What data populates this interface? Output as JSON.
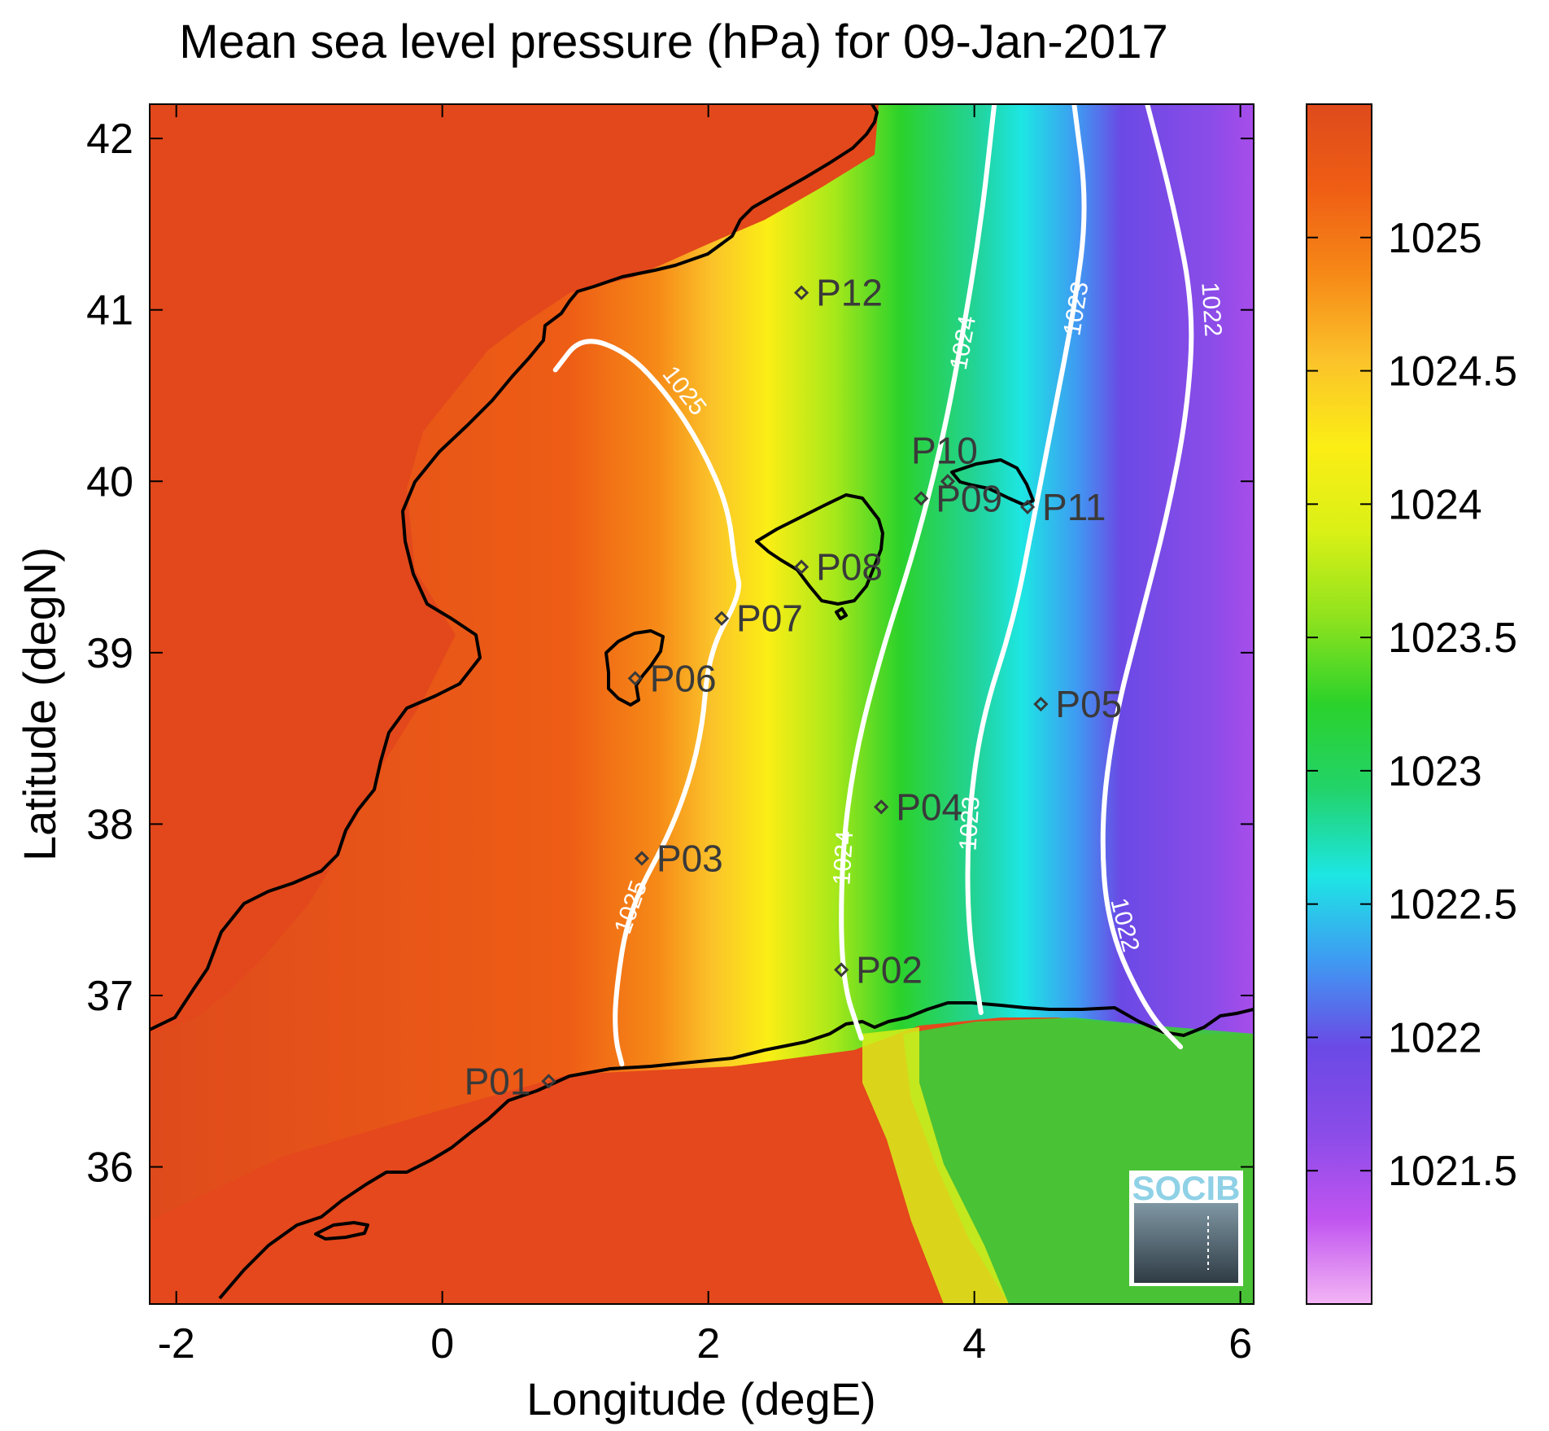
{
  "title": "Mean sea level pressure (hPa) for 09-Jan-2017",
  "chart_data": {
    "type": "heatmap",
    "title": "Mean sea level pressure (hPa) for 09-Jan-2017",
    "xlabel": "Longitude (degE)",
    "ylabel": "Latitude (degN)",
    "xlim": [
      -2.2,
      6.1
    ],
    "ylim": [
      35.2,
      42.2
    ],
    "x_ticks": [
      "-2",
      "0",
      "2",
      "4",
      "6"
    ],
    "x_tick_values": [
      -2,
      0,
      2,
      4,
      6
    ],
    "y_ticks": [
      "36",
      "37",
      "38",
      "39",
      "40",
      "41",
      "42"
    ],
    "y_tick_values": [
      36,
      37,
      38,
      39,
      40,
      41,
      42
    ],
    "colorbar": {
      "range": [
        1021,
        1025.5
      ],
      "ticks": [
        "1025",
        "1024.5",
        "1024",
        "1023.5",
        "1023",
        "1022.5",
        "1022",
        "1021.5"
      ],
      "tick_values": [
        1025,
        1024.5,
        1024,
        1023.5,
        1023,
        1022.5,
        1022,
        1021.5
      ],
      "colors": [
        "#f3b5f4",
        "#c054f0",
        "#8a4ce8",
        "#6b49e5",
        "#3f9af2",
        "#1de6e4",
        "#22d36a",
        "#2bd22b",
        "#8ee21e",
        "#d9f016",
        "#fbee15",
        "#fbc32a",
        "#f68a17",
        "#ef5e14",
        "#df4a1c"
      ]
    },
    "contours": [
      {
        "level": "1025",
        "lon_lat": [
          [
            0.85,
            40.65
          ],
          [
            1.05,
            40.85
          ],
          [
            1.4,
            40.75
          ],
          [
            1.7,
            40.5
          ],
          [
            1.95,
            40.2
          ],
          [
            2.15,
            39.85
          ],
          [
            2.2,
            39.5
          ],
          [
            2.25,
            39.35
          ],
          [
            2.0,
            39.0
          ],
          [
            1.95,
            38.5
          ],
          [
            1.75,
            38.0
          ],
          [
            1.4,
            37.5
          ],
          [
            1.3,
            37.0
          ],
          [
            1.3,
            36.75
          ],
          [
            1.35,
            36.6
          ]
        ]
      },
      {
        "level": "1024",
        "lon_lat": [
          [
            4.15,
            42.2
          ],
          [
            4.05,
            41.5
          ],
          [
            3.9,
            40.8
          ],
          [
            3.75,
            40.2
          ],
          [
            3.55,
            39.6
          ],
          [
            3.3,
            39.0
          ],
          [
            3.1,
            38.4
          ],
          [
            3.0,
            37.8
          ],
          [
            3.0,
            37.1
          ],
          [
            3.15,
            36.75
          ]
        ]
      },
      {
        "level": "1023",
        "lon_lat": [
          [
            4.75,
            42.2
          ],
          [
            4.85,
            41.6
          ],
          [
            4.75,
            41.0
          ],
          [
            4.6,
            40.4
          ],
          [
            4.45,
            39.8
          ],
          [
            4.3,
            39.2
          ],
          [
            4.05,
            38.6
          ],
          [
            3.95,
            38.0
          ],
          [
            3.95,
            37.4
          ],
          [
            4.05,
            36.9
          ]
        ]
      },
      {
        "level": "1022",
        "lon_lat": [
          [
            5.3,
            42.2
          ],
          [
            5.5,
            41.6
          ],
          [
            5.65,
            41.0
          ],
          [
            5.6,
            40.4
          ],
          [
            5.45,
            39.8
          ],
          [
            5.25,
            39.2
          ],
          [
            5.05,
            38.6
          ],
          [
            4.95,
            38.0
          ],
          [
            5.0,
            37.4
          ],
          [
            5.3,
            36.9
          ],
          [
            5.55,
            36.7
          ]
        ]
      }
    ],
    "stations": [
      {
        "name": "P01",
        "lon": 0.8,
        "lat": 36.5
      },
      {
        "name": "P02",
        "lon": 3.0,
        "lat": 37.15
      },
      {
        "name": "P03",
        "lon": 1.5,
        "lat": 37.8
      },
      {
        "name": "P04",
        "lon": 3.3,
        "lat": 38.1
      },
      {
        "name": "P05",
        "lon": 4.5,
        "lat": 38.7
      },
      {
        "name": "P06",
        "lon": 1.45,
        "lat": 38.85
      },
      {
        "name": "P07",
        "lon": 2.1,
        "lat": 39.2
      },
      {
        "name": "P08",
        "lon": 2.7,
        "lat": 39.5
      },
      {
        "name": "P09",
        "lon": 3.6,
        "lat": 39.9
      },
      {
        "name": "P10",
        "lon": 3.8,
        "lat": 40.0
      },
      {
        "name": "P11",
        "lon": 4.4,
        "lat": 39.85
      },
      {
        "name": "P12",
        "lon": 2.7,
        "lat": 41.1
      }
    ]
  },
  "logo": {
    "text": "SOCIB"
  }
}
